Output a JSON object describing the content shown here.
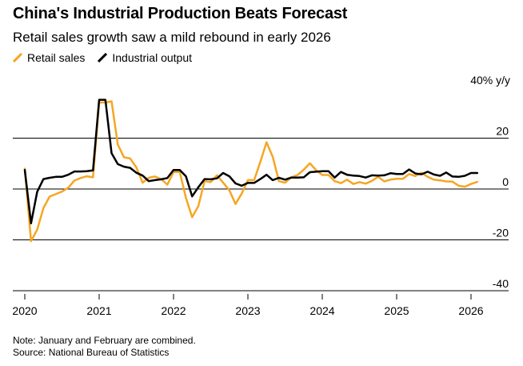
{
  "title": "China's Industrial Production Beats Forecast",
  "subtitle": "Retail sales growth saw a mild rebound in early 2026",
  "unit_label": "40% y/y",
  "note": "Note: January and February are combined.",
  "source": "Source: National Bureau of Statistics",
  "colors": {
    "retail": "#f5a623",
    "industrial": "#000000"
  },
  "chart_data": {
    "type": "line",
    "xlabel": "",
    "ylabel": "",
    "ylim": [
      -40,
      40
    ],
    "y_ticks": [
      20,
      0,
      -20,
      -40
    ],
    "x_ticks": [
      "2020",
      "2021",
      "2022",
      "2023",
      "2024",
      "2025",
      "2026"
    ],
    "grid": false,
    "legend": "top-left",
    "series": [
      {
        "name": "Retail sales",
        "color": "#f5a623",
        "points": [
          [
            "2020-01",
            8
          ],
          [
            "2020-02",
            -20.5
          ],
          [
            "2020-03",
            -16
          ],
          [
            "2020-04",
            -7.5
          ],
          [
            "2020-05",
            -3
          ],
          [
            "2020-06",
            -2
          ],
          [
            "2020-07",
            -1
          ],
          [
            "2020-08",
            0.5
          ],
          [
            "2020-09",
            3.3
          ],
          [
            "2020-10",
            4.3
          ],
          [
            "2020-11",
            5
          ],
          [
            "2020-12",
            4.6
          ],
          [
            "2021-01",
            34
          ],
          [
            "2021-02",
            34
          ],
          [
            "2021-03",
            34.5
          ],
          [
            "2021-04",
            17.5
          ],
          [
            "2021-05",
            12.5
          ],
          [
            "2021-06",
            12
          ],
          [
            "2021-07",
            8.5
          ],
          [
            "2021-08",
            2.5
          ],
          [
            "2021-09",
            4.4
          ],
          [
            "2021-10",
            4.9
          ],
          [
            "2021-11",
            3.9
          ],
          [
            "2021-12",
            1.7
          ],
          [
            "2022-01",
            6.7
          ],
          [
            "2022-02",
            6.7
          ],
          [
            "2022-03",
            -3.5
          ],
          [
            "2022-04",
            -11.1
          ],
          [
            "2022-05",
            -6.7
          ],
          [
            "2022-06",
            3.1
          ],
          [
            "2022-07",
            2.7
          ],
          [
            "2022-08",
            5.4
          ],
          [
            "2022-09",
            2.5
          ],
          [
            "2022-10",
            -0.5
          ],
          [
            "2022-11",
            -5.9
          ],
          [
            "2022-12",
            -1.8
          ],
          [
            "2023-01",
            3.5
          ],
          [
            "2023-02",
            3.5
          ],
          [
            "2023-03",
            10.6
          ],
          [
            "2023-04",
            18.4
          ],
          [
            "2023-05",
            12.7
          ],
          [
            "2023-06",
            3.1
          ],
          [
            "2023-07",
            2.5
          ],
          [
            "2023-08",
            4.6
          ],
          [
            "2023-09",
            5.5
          ],
          [
            "2023-10",
            7.6
          ],
          [
            "2023-11",
            10.1
          ],
          [
            "2023-12",
            7.4
          ],
          [
            "2024-01",
            5.5
          ],
          [
            "2024-02",
            5.5
          ],
          [
            "2024-03",
            3.1
          ],
          [
            "2024-04",
            2.3
          ],
          [
            "2024-05",
            3.7
          ],
          [
            "2024-06",
            2
          ],
          [
            "2024-07",
            2.7
          ],
          [
            "2024-08",
            2.1
          ],
          [
            "2024-09",
            3.2
          ],
          [
            "2024-10",
            4.8
          ],
          [
            "2024-11",
            3
          ],
          [
            "2024-12",
            3.7
          ],
          [
            "2025-01",
            4
          ],
          [
            "2025-02",
            4
          ],
          [
            "2025-03",
            5.9
          ],
          [
            "2025-04",
            5.1
          ],
          [
            "2025-05",
            6.4
          ],
          [
            "2025-06",
            4.8
          ],
          [
            "2025-07",
            3.7
          ],
          [
            "2025-08",
            3.4
          ],
          [
            "2025-09",
            3
          ],
          [
            "2025-10",
            2.9
          ],
          [
            "2025-11",
            1.3
          ],
          [
            "2025-12",
            0.9
          ],
          [
            "2026-01",
            2
          ],
          [
            "2026-02",
            2.8
          ]
        ]
      },
      {
        "name": "Industrial output",
        "color": "#000000",
        "points": [
          [
            "2020-01",
            7.5
          ],
          [
            "2020-02",
            -13.5
          ],
          [
            "2020-03",
            -1.1
          ],
          [
            "2020-04",
            3.9
          ],
          [
            "2020-05",
            4.4
          ],
          [
            "2020-06",
            4.8
          ],
          [
            "2020-07",
            4.8
          ],
          [
            "2020-08",
            5.6
          ],
          [
            "2020-09",
            6.9
          ],
          [
            "2020-10",
            6.9
          ],
          [
            "2020-11",
            7
          ],
          [
            "2020-12",
            7.3
          ],
          [
            "2021-01",
            35.1
          ],
          [
            "2021-02",
            35.1
          ],
          [
            "2021-03",
            14.1
          ],
          [
            "2021-04",
            9.8
          ],
          [
            "2021-05",
            8.8
          ],
          [
            "2021-06",
            8.3
          ],
          [
            "2021-07",
            6.4
          ],
          [
            "2021-08",
            5.3
          ],
          [
            "2021-09",
            3.1
          ],
          [
            "2021-10",
            3.5
          ],
          [
            "2021-11",
            3.8
          ],
          [
            "2021-12",
            4.3
          ],
          [
            "2022-01",
            7.5
          ],
          [
            "2022-02",
            7.5
          ],
          [
            "2022-03",
            5
          ],
          [
            "2022-04",
            -2.9
          ],
          [
            "2022-05",
            0.7
          ],
          [
            "2022-06",
            3.9
          ],
          [
            "2022-07",
            3.8
          ],
          [
            "2022-08",
            4.2
          ],
          [
            "2022-09",
            6.3
          ],
          [
            "2022-10",
            5
          ],
          [
            "2022-11",
            2.2
          ],
          [
            "2022-12",
            1.3
          ],
          [
            "2023-01",
            2.4
          ],
          [
            "2023-02",
            2.4
          ],
          [
            "2023-03",
            3.9
          ],
          [
            "2023-04",
            5.6
          ],
          [
            "2023-05",
            3.5
          ],
          [
            "2023-06",
            4.4
          ],
          [
            "2023-07",
            3.7
          ],
          [
            "2023-08",
            4.5
          ],
          [
            "2023-09",
            4.5
          ],
          [
            "2023-10",
            4.6
          ],
          [
            "2023-11",
            6.6
          ],
          [
            "2023-12",
            6.8
          ],
          [
            "2024-01",
            7
          ],
          [
            "2024-02",
            7
          ],
          [
            "2024-03",
            4.5
          ],
          [
            "2024-04",
            6.7
          ],
          [
            "2024-05",
            5.6
          ],
          [
            "2024-06",
            5.3
          ],
          [
            "2024-07",
            5.1
          ],
          [
            "2024-08",
            4.5
          ],
          [
            "2024-09",
            5.4
          ],
          [
            "2024-10",
            5.3
          ],
          [
            "2024-11",
            5.4
          ],
          [
            "2024-12",
            6.2
          ],
          [
            "2025-01",
            5.9
          ],
          [
            "2025-02",
            5.9
          ],
          [
            "2025-03",
            7.7
          ],
          [
            "2025-04",
            6.1
          ],
          [
            "2025-05",
            5.8
          ],
          [
            "2025-06",
            6.8
          ],
          [
            "2025-07",
            5.7
          ],
          [
            "2025-08",
            5.2
          ],
          [
            "2025-09",
            6.5
          ],
          [
            "2025-10",
            4.9
          ],
          [
            "2025-11",
            4.8
          ],
          [
            "2025-12",
            5.2
          ],
          [
            "2026-01",
            6.3
          ],
          [
            "2026-02",
            6.3
          ]
        ]
      }
    ]
  }
}
